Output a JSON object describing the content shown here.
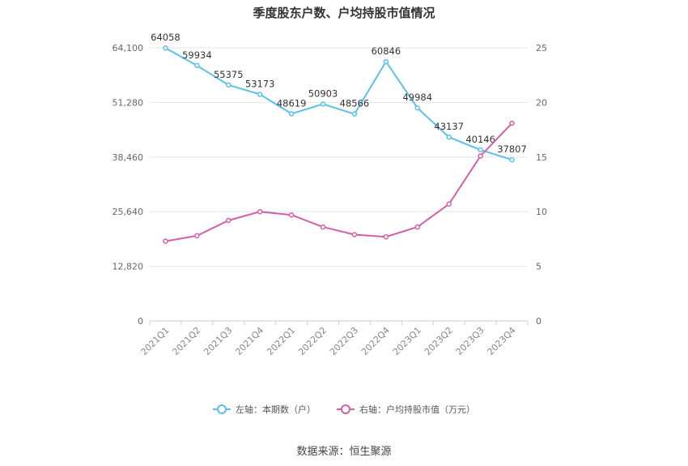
{
  "chart_data": {
    "type": "line",
    "title": "季度股东户数、户均持股市值情况",
    "categories": [
      "2021Q1",
      "2021Q2",
      "2021Q3",
      "2021Q4",
      "2022Q1",
      "2022Q2",
      "2022Q3",
      "2022Q4",
      "2023Q1",
      "2023Q2",
      "2023Q3",
      "2023Q4"
    ],
    "left_axis": {
      "ylim": [
        0,
        64100
      ],
      "ticks": [
        "0",
        "12,820",
        "25,640",
        "38,460",
        "51,280",
        "64,100"
      ]
    },
    "right_axis": {
      "ylim": [
        0,
        25
      ],
      "ticks": [
        "0",
        "5",
        "10",
        "15",
        "20",
        "25"
      ]
    },
    "series": [
      {
        "name": "左轴：本期数（户）",
        "axis": "left",
        "color": "#5bc0eb",
        "values": [
          64058,
          59934,
          55375,
          53173,
          48619,
          50903,
          48566,
          60846,
          49984,
          43137,
          40146,
          37807
        ],
        "labels": [
          "64058",
          "59934",
          "55375",
          "53173",
          "48619",
          "50903",
          "48566",
          "60846",
          "49984",
          "43137",
          "40146",
          "37807"
        ]
      },
      {
        "name": "右轴：户均持股市值（万元）",
        "axis": "right",
        "color": "#d45fa8",
        "values": [
          7.3,
          7.8,
          9.2,
          10.0,
          9.7,
          8.6,
          7.9,
          7.7,
          8.6,
          10.7,
          15.1,
          18.1
        ]
      }
    ]
  },
  "source": "数据来源：恒生聚源"
}
